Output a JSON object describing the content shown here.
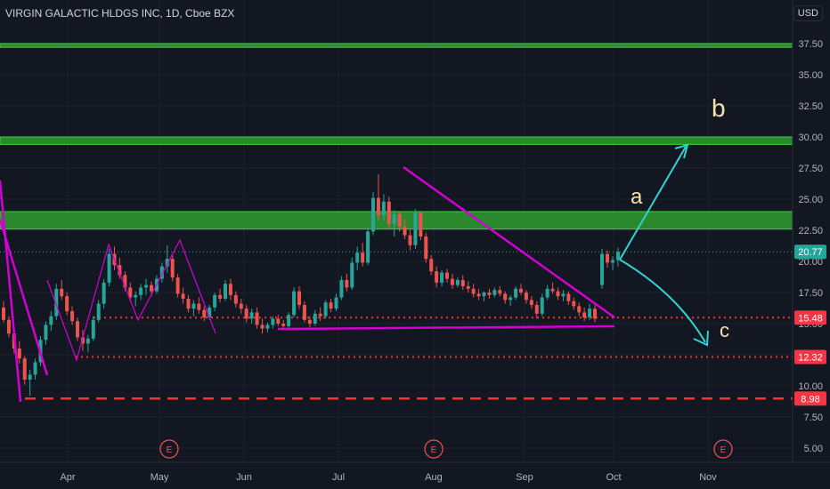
{
  "header": {
    "title": "VIRGIN GALACTIC HLDGS INC, 1D, Cboe BZX"
  },
  "currency": "USD",
  "colors": {
    "bg": "#131722",
    "grid": "#1e222d",
    "up": "#26a69a",
    "down": "#ef5350",
    "zone": "#2e9e2e",
    "pattern": "#d400d4",
    "arrow": "#2ed3d3",
    "dotted": "#ff3030",
    "dashed": "#ff3030",
    "label": "#f7e3a8",
    "axis_text": "#b2b5be"
  },
  "chart_data": {
    "type": "candlestick",
    "ylim": [
      3.5,
      39.5
    ],
    "y_ticks": [
      "5.00",
      "7.50",
      "10.00",
      "12.50",
      "15.00",
      "17.50",
      "20.00",
      "22.50",
      "25.00",
      "27.50",
      "30.00",
      "32.50",
      "35.00",
      "37.50"
    ],
    "x_ticks": [
      "Apr",
      "May",
      "Jun",
      "Jul",
      "Aug",
      "Sep",
      "Oct",
      "Nov"
    ],
    "price_labels": [
      {
        "text": "20.77",
        "value": 20.77,
        "kind": "last"
      },
      {
        "text": "15.48",
        "value": 15.48,
        "kind": "level"
      },
      {
        "text": "12.32",
        "value": 12.32,
        "kind": "level"
      },
      {
        "text": "8.98",
        "value": 8.98,
        "kind": "level"
      }
    ],
    "zones": [
      [
        37.2,
        37.5
      ],
      [
        29.4,
        30.0
      ],
      [
        22.6,
        24.0
      ]
    ],
    "earnings_markers": [
      "E",
      "E",
      "E"
    ],
    "annotations": [
      "a",
      "b",
      "c"
    ],
    "ohlc": [
      [
        16.3,
        16.8,
        15.1,
        15.3
      ],
      [
        15.3,
        15.6,
        13.9,
        14.2
      ],
      [
        14.2,
        14.5,
        12.6,
        13.0
      ],
      [
        13.0,
        13.6,
        11.8,
        12.2
      ],
      [
        12.2,
        12.4,
        10.1,
        10.5
      ],
      [
        10.5,
        11.3,
        9.2,
        10.9
      ],
      [
        10.9,
        12.2,
        10.5,
        11.9
      ],
      [
        11.9,
        14.0,
        11.6,
        13.7
      ],
      [
        13.7,
        15.2,
        13.3,
        14.9
      ],
      [
        14.9,
        16.0,
        14.4,
        15.6
      ],
      [
        15.6,
        18.2,
        15.3,
        17.8
      ],
      [
        17.8,
        18.5,
        16.9,
        17.2
      ],
      [
        17.2,
        17.5,
        15.7,
        16.0
      ],
      [
        16.0,
        16.4,
        14.9,
        15.2
      ],
      [
        15.2,
        15.5,
        13.6,
        13.9
      ],
      [
        13.9,
        14.5,
        12.8,
        13.4
      ],
      [
        13.4,
        14.1,
        12.7,
        13.8
      ],
      [
        13.8,
        15.6,
        13.6,
        15.3
      ],
      [
        15.3,
        16.9,
        15.1,
        16.6
      ],
      [
        16.6,
        18.6,
        16.2,
        18.3
      ],
      [
        18.3,
        21.0,
        18.0,
        20.6
      ],
      [
        20.6,
        21.2,
        19.3,
        19.7
      ],
      [
        19.7,
        20.3,
        18.6,
        18.9
      ],
      [
        18.9,
        19.2,
        17.6,
        17.9
      ],
      [
        17.9,
        18.3,
        16.8,
        17.1
      ],
      [
        17.1,
        17.6,
        16.4,
        17.3
      ],
      [
        17.3,
        18.2,
        16.9,
        17.9
      ],
      [
        17.9,
        18.6,
        17.3,
        18.1
      ],
      [
        18.1,
        18.4,
        17.2,
        17.6
      ],
      [
        17.6,
        18.9,
        17.4,
        18.6
      ],
      [
        18.6,
        19.9,
        18.3,
        19.6
      ],
      [
        19.6,
        21.3,
        19.1,
        20.2
      ],
      [
        20.2,
        20.5,
        18.4,
        18.7
      ],
      [
        18.7,
        19.0,
        17.1,
        17.4
      ],
      [
        17.4,
        17.9,
        16.6,
        17.0
      ],
      [
        17.0,
        17.3,
        15.9,
        16.2
      ],
      [
        16.2,
        16.9,
        15.6,
        16.6
      ],
      [
        16.6,
        17.1,
        15.8,
        16.1
      ],
      [
        16.1,
        16.4,
        15.2,
        15.5
      ],
      [
        15.5,
        16.5,
        15.3,
        16.3
      ],
      [
        16.3,
        17.5,
        16.0,
        17.3
      ],
      [
        17.3,
        17.8,
        16.7,
        17.0
      ],
      [
        17.0,
        18.5,
        16.8,
        18.2
      ],
      [
        18.2,
        18.6,
        16.9,
        17.3
      ],
      [
        17.3,
        17.6,
        16.3,
        16.6
      ],
      [
        16.6,
        17.0,
        15.8,
        16.2
      ],
      [
        16.2,
        16.5,
        15.1,
        15.4
      ],
      [
        15.4,
        16.2,
        15.0,
        15.9
      ],
      [
        15.9,
        16.3,
        14.6,
        14.9
      ],
      [
        14.9,
        15.4,
        14.2,
        14.6
      ],
      [
        14.6,
        15.1,
        14.3,
        14.9
      ],
      [
        14.9,
        15.6,
        14.6,
        15.4
      ],
      [
        15.4,
        15.7,
        14.8,
        15.0
      ],
      [
        15.0,
        15.3,
        14.5,
        14.8
      ],
      [
        14.8,
        15.9,
        14.6,
        15.7
      ],
      [
        15.7,
        17.9,
        15.5,
        17.6
      ],
      [
        17.6,
        18.0,
        16.2,
        16.5
      ],
      [
        16.5,
        16.8,
        15.1,
        15.3
      ],
      [
        15.3,
        15.6,
        14.7,
        15.0
      ],
      [
        15.0,
        16.1,
        14.8,
        15.8
      ],
      [
        15.8,
        16.3,
        15.2,
        15.6
      ],
      [
        15.6,
        16.9,
        15.4,
        16.7
      ],
      [
        16.7,
        17.0,
        15.9,
        16.2
      ],
      [
        16.2,
        17.4,
        16.0,
        17.1
      ],
      [
        17.1,
        18.8,
        16.9,
        18.5
      ],
      [
        18.5,
        19.0,
        17.6,
        17.9
      ],
      [
        17.9,
        20.3,
        17.7,
        19.9
      ],
      [
        19.9,
        21.2,
        19.3,
        20.7
      ],
      [
        20.7,
        21.5,
        19.6,
        19.9
      ],
      [
        19.9,
        22.8,
        19.7,
        22.4
      ],
      [
        22.4,
        25.6,
        22.1,
        25.1
      ],
      [
        25.1,
        27.0,
        23.3,
        23.7
      ],
      [
        23.7,
        25.4,
        23.2,
        24.8
      ],
      [
        24.8,
        25.2,
        22.6,
        23.0
      ],
      [
        23.0,
        24.1,
        22.0,
        23.8
      ],
      [
        23.8,
        24.0,
        22.4,
        22.8
      ],
      [
        22.8,
        23.4,
        21.8,
        22.1
      ],
      [
        22.1,
        22.6,
        20.9,
        21.3
      ],
      [
        21.3,
        24.2,
        21.0,
        23.9
      ],
      [
        23.9,
        24.0,
        21.7,
        22.0
      ],
      [
        22.0,
        22.3,
        19.9,
        20.2
      ],
      [
        20.2,
        20.5,
        18.9,
        19.2
      ],
      [
        19.2,
        19.6,
        17.9,
        18.3
      ],
      [
        18.3,
        19.3,
        18.0,
        19.1
      ],
      [
        19.1,
        19.4,
        18.3,
        18.6
      ],
      [
        18.6,
        19.0,
        17.8,
        18.1
      ],
      [
        18.1,
        18.7,
        17.9,
        18.5
      ],
      [
        18.5,
        18.9,
        17.7,
        18.0
      ],
      [
        18.0,
        18.4,
        17.5,
        17.8
      ],
      [
        17.8,
        18.2,
        17.1,
        17.4
      ],
      [
        17.4,
        17.8,
        16.9,
        17.2
      ],
      [
        17.2,
        17.6,
        16.8,
        17.5
      ],
      [
        17.5,
        17.8,
        17.0,
        17.3
      ],
      [
        17.3,
        17.9,
        17.1,
        17.7
      ],
      [
        17.7,
        18.0,
        17.2,
        17.4
      ],
      [
        17.4,
        17.6,
        16.6,
        16.9
      ],
      [
        16.9,
        17.3,
        16.4,
        17.1
      ],
      [
        17.1,
        18.0,
        16.9,
        17.8
      ],
      [
        17.8,
        18.2,
        17.3,
        17.5
      ],
      [
        17.5,
        17.7,
        16.6,
        16.9
      ],
      [
        16.9,
        17.2,
        16.2,
        16.5
      ],
      [
        16.5,
        16.8,
        15.4,
        15.8
      ],
      [
        15.8,
        17.4,
        15.6,
        17.1
      ],
      [
        17.1,
        18.1,
        16.9,
        17.8
      ],
      [
        17.8,
        18.3,
        17.4,
        17.6
      ],
      [
        17.6,
        17.9,
        16.9,
        17.2
      ],
      [
        17.2,
        17.7,
        16.8,
        17.4
      ],
      [
        17.4,
        17.6,
        16.5,
        16.8
      ],
      [
        16.8,
        17.1,
        16.1,
        16.4
      ],
      [
        16.4,
        16.7,
        15.6,
        15.9
      ],
      [
        15.9,
        16.3,
        15.2,
        15.5
      ],
      [
        15.5,
        16.6,
        15.3,
        16.2
      ],
      [
        16.2,
        16.5,
        15.1,
        15.4
      ],
      [
        18.1,
        21.0,
        17.8,
        20.6
      ],
      [
        20.6,
        20.9,
        19.5,
        19.9
      ],
      [
        19.9,
        20.4,
        19.3,
        20.1
      ],
      [
        20.1,
        21.1,
        19.6,
        20.77
      ]
    ]
  }
}
